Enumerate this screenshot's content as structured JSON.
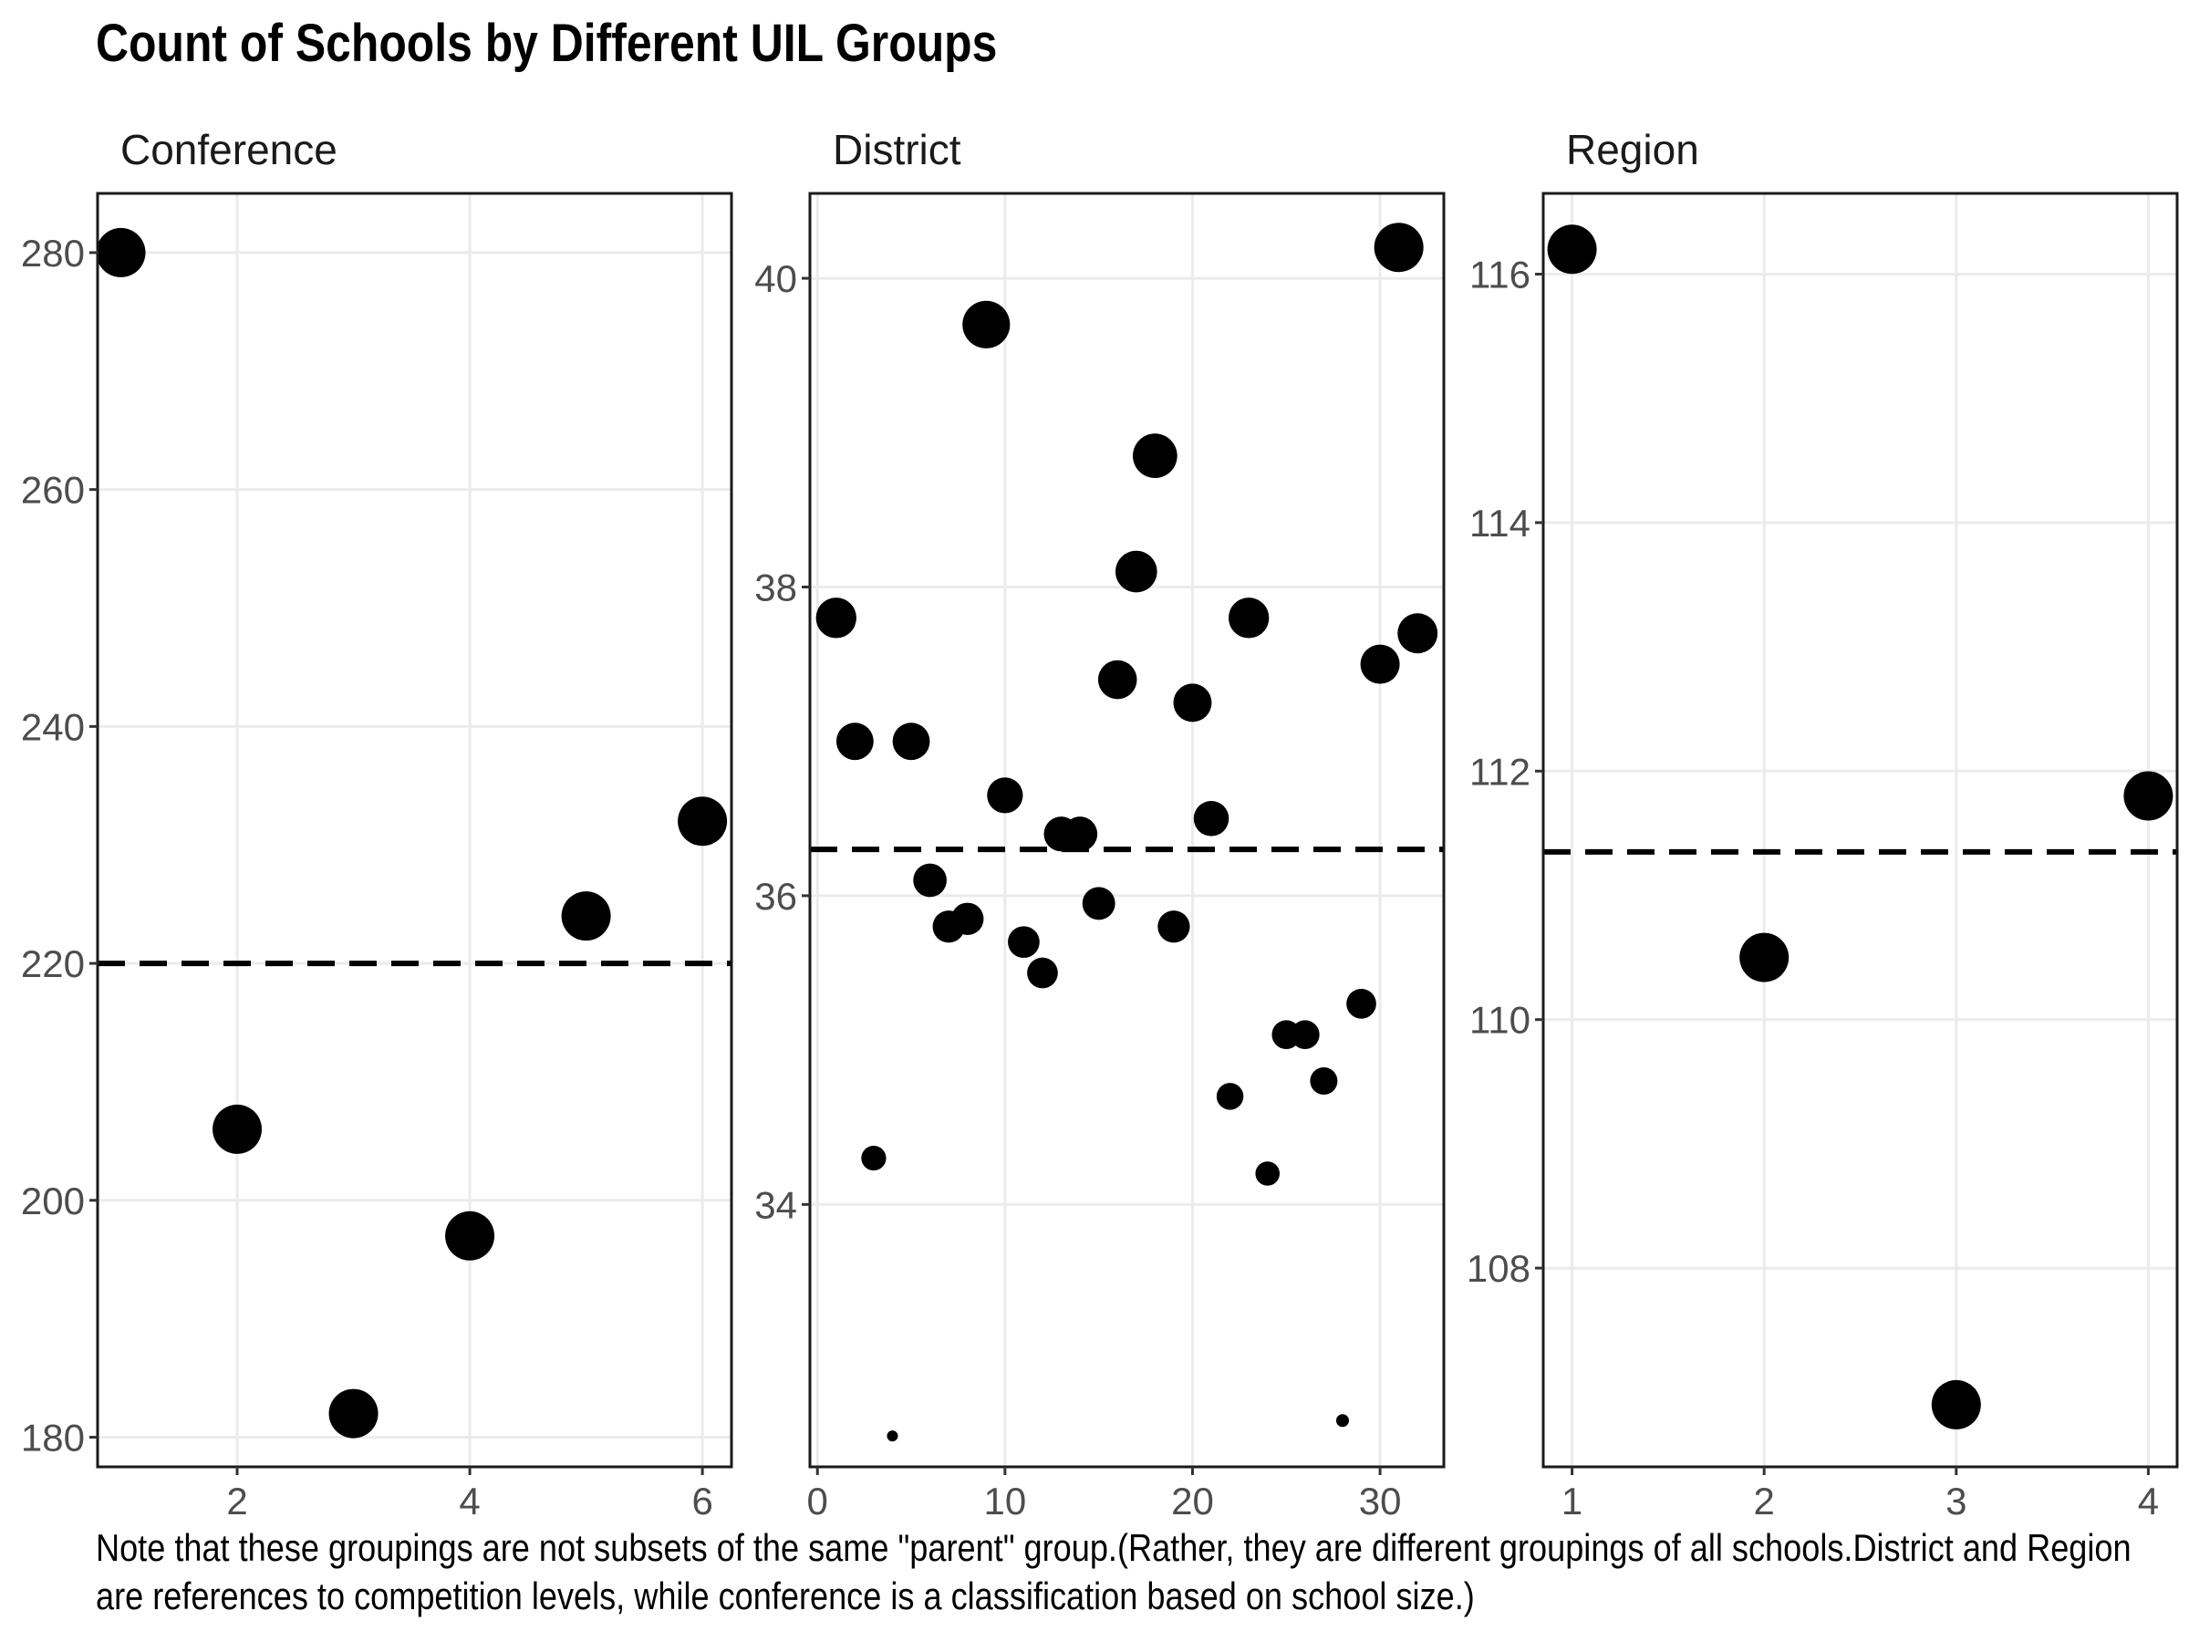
{
  "title": "Count of Schools by Different UIL Groups",
  "caption": "Note that these groupings are not subsets of the same \"parent\" group.(Rather, they are different groupings of all schools.District and Region are references to competition levels, while conference is a classification based on school size.)",
  "chart_data": [
    {
      "type": "scatter",
      "facet": "Conference",
      "x": [
        1,
        2,
        3,
        4,
        5,
        6
      ],
      "y": [
        280,
        206,
        182,
        197,
        224,
        232
      ],
      "mean_line": 220,
      "xlim": [
        0.8,
        6.25
      ],
      "ylim": [
        177.5,
        285
      ],
      "xticks": [
        2,
        4,
        6
      ],
      "yticks": [
        180,
        200,
        220,
        240,
        260,
        280
      ],
      "grid": true
    },
    {
      "type": "scatter",
      "facet": "District",
      "x": [
        1,
        2,
        3,
        4,
        5,
        6,
        7,
        8,
        9,
        10,
        11,
        12,
        13,
        14,
        15,
        16,
        17,
        18,
        19,
        20,
        21,
        22,
        23,
        24,
        25,
        26,
        27,
        28,
        29,
        30,
        31,
        32
      ],
      "y": [
        37.8,
        37.0,
        34.3,
        32.5,
        37.0,
        36.1,
        35.8,
        35.85,
        39.7,
        36.65,
        35.7,
        35.5,
        36.4,
        36.4,
        35.95,
        37.4,
        38.1,
        38.85,
        35.8,
        37.25,
        36.5,
        34.7,
        37.8,
        34.2,
        35.1,
        35.1,
        34.8,
        32.6,
        35.3,
        37.5,
        40.2,
        37.7
      ],
      "mean_line": 36.3,
      "xlim": [
        -0.4,
        33.4
      ],
      "ylim": [
        32.3,
        40.55
      ],
      "xticks": [
        0,
        10,
        20,
        30
      ],
      "yticks": [
        34,
        36,
        38,
        40
      ],
      "grid": true
    },
    {
      "type": "scatter",
      "facet": "Region",
      "x": [
        1,
        2,
        3,
        4
      ],
      "y": [
        116.2,
        110.5,
        106.9,
        111.8
      ],
      "mean_line": 111.35,
      "xlim": [
        0.85,
        4.15
      ],
      "ylim": [
        106.4,
        116.65
      ],
      "xticks": [
        1,
        2,
        3,
        4
      ],
      "yticks": [
        108,
        110,
        112,
        114,
        116
      ],
      "grid": true
    }
  ]
}
